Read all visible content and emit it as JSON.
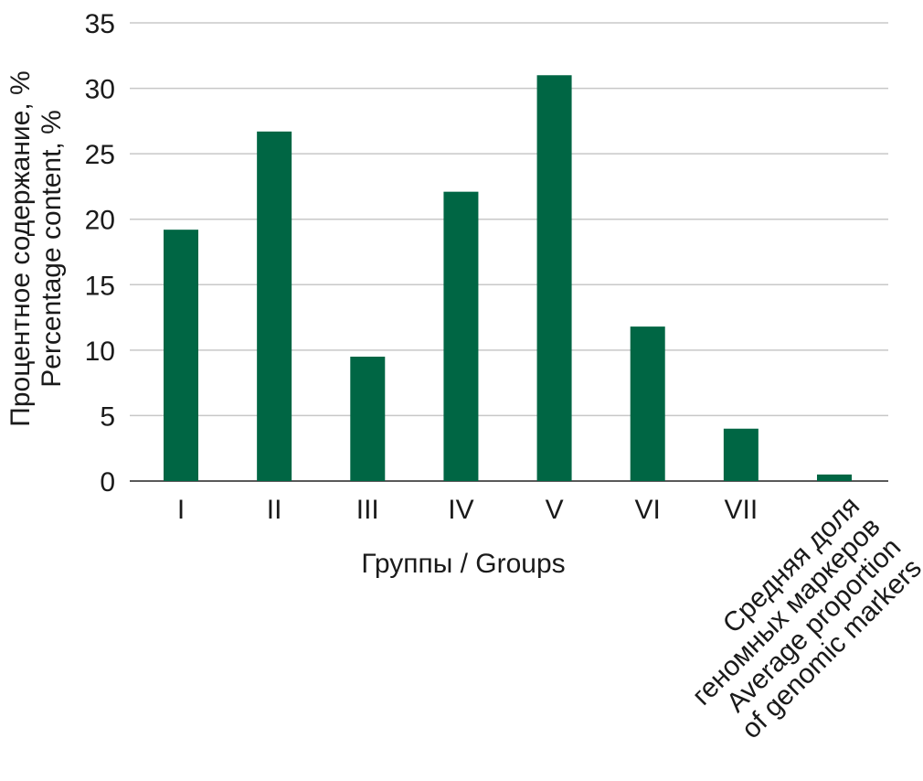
{
  "chart_data": {
    "type": "bar",
    "categories": [
      "I",
      "II",
      "III",
      "IV",
      "V",
      "VI",
      "VII",
      "Средняя доля геномных маркеров Average proportion of genomic markers"
    ],
    "category_lines": {
      "last": [
        "Средняя доля",
        "геномных маркеров",
        "Average proportion",
        "of genomic markers"
      ]
    },
    "values": [
      19.2,
      26.7,
      9.5,
      22.1,
      31.0,
      11.8,
      4.0,
      0.5
    ],
    "title": "",
    "xlabel": "Группы / Groups",
    "ylabel_lines": [
      "Процентное содержание, %",
      "Percentage content, %"
    ],
    "ylim": [
      0,
      35
    ],
    "yticks": [
      "0",
      "5",
      "10",
      "15",
      "20",
      "25",
      "30",
      "35"
    ],
    "grid": true,
    "legend": "none",
    "colors": {
      "bar": "#006644",
      "grid": "#c8c8c8",
      "text": "#1a1a1a"
    }
  }
}
